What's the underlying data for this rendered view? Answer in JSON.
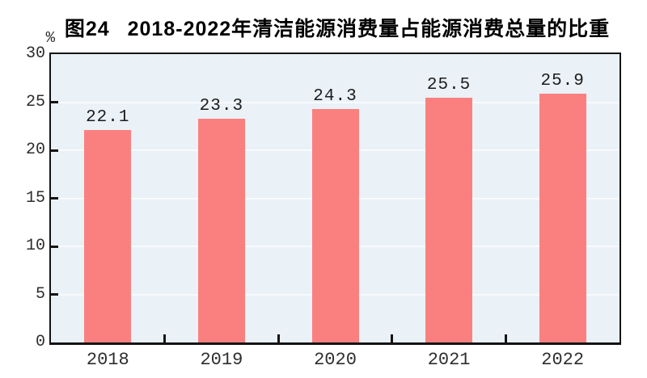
{
  "chart_data": {
    "type": "bar",
    "title_prefix": "图24",
    "title": "2018-2022年清洁能源消费量占能源消费总量的比重",
    "unit_label": "%",
    "categories": [
      "2018",
      "2019",
      "2020",
      "2021",
      "2022"
    ],
    "values": [
      22.1,
      23.3,
      24.3,
      25.5,
      25.9
    ],
    "value_labels": [
      "22.1",
      "23.3",
      "24.3",
      "25.5",
      "25.9"
    ],
    "xlabel": "",
    "ylabel": "%",
    "ylim": [
      0,
      30
    ],
    "yticks": [
      0,
      5,
      10,
      15,
      20,
      25,
      30
    ],
    "grid": "horizontal",
    "legend": "none",
    "colors": {
      "bar": "#fa8080",
      "plot_background": "#eaf1f7",
      "gridline": "#f8fbfd",
      "axis": "#141414",
      "tick_text": "#2e2e2e",
      "title_text": "#000000"
    }
  }
}
